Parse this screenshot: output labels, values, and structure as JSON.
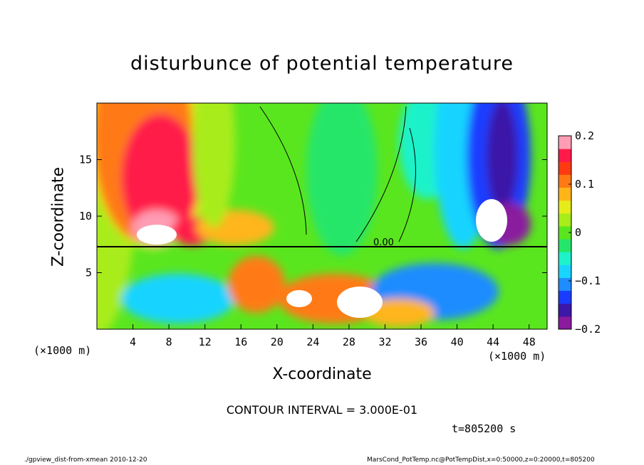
{
  "chart_data": {
    "type": "heatmap",
    "title": "disturbunce of potential temperature",
    "xlabel": "X-coordinate",
    "ylabel": "Z-coordinate",
    "x_unit": "(×1000 m)",
    "y_unit": "(×1000 m)",
    "xlim": [
      0,
      50
    ],
    "ylim": [
      0,
      20
    ],
    "x_ticks": [
      4,
      8,
      12,
      16,
      20,
      24,
      28,
      32,
      36,
      40,
      44,
      48
    ],
    "y_ticks": [
      5,
      10,
      15
    ],
    "colorbar": {
      "range": [
        -0.2,
        0.2
      ],
      "tick_values": [
        0.2,
        0.1,
        0,
        -0.1,
        -0.2
      ],
      "tick_labels": [
        "0.2",
        "0.1",
        "0",
        "−0.1",
        "−0.2"
      ],
      "colors": [
        "#8a1a9e",
        "#3b18a8",
        "#1a3cff",
        "#1f8cff",
        "#19d4ff",
        "#1df2c9",
        "#25e66a",
        "#5ae61e",
        "#a8ec1a",
        "#e6ec1a",
        "#ffb51a",
        "#ff7a14",
        "#ff3a12",
        "#ff1a4a",
        "#ff9db4"
      ]
    },
    "contour_label": "0.00",
    "contour_interval": "CONTOUR INTERVAL = 3.000E-01",
    "time_label": "t=805200  s",
    "footer_left": "./gpview_dist-from-xmean  2010-12-20",
    "footer_right": "MarsCond_PotTemp.nc@PotTempDist,x=0:50000,z=0:20000,t=805200"
  }
}
